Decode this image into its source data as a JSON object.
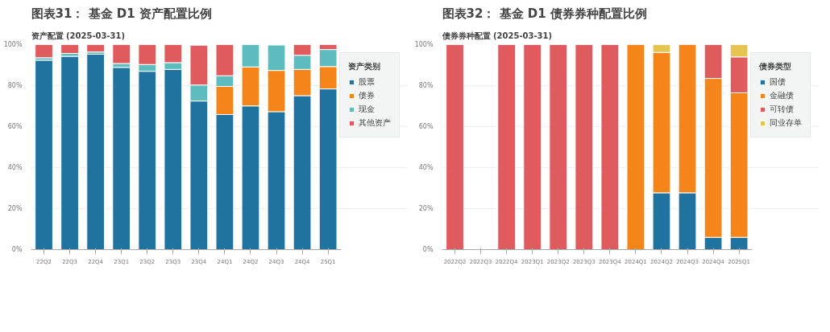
{
  "chart_data": [
    {
      "type": "bar",
      "title": "图表31： 基金 D1 资产配置比例",
      "subtitle": "资产配置 (2025-03-31)",
      "legend_title": "资产类别",
      "stacked": true,
      "legend": "right",
      "grid": "y",
      "categories": [
        "22Q2",
        "22Q3",
        "22Q4",
        "23Q1",
        "23Q2",
        "23Q3",
        "23Q4",
        "24Q1",
        "24Q2",
        "24Q3",
        "24Q4",
        "25Q1"
      ],
      "ylim": [
        0,
        100
      ],
      "yticks": [
        {
          "value": 0,
          "label": "0%"
        },
        {
          "value": 20,
          "label": "20%"
        },
        {
          "value": 40,
          "label": "40%"
        },
        {
          "value": 60,
          "label": "60%"
        },
        {
          "value": 80,
          "label": "80%"
        },
        {
          "value": 100,
          "label": "100%"
        }
      ],
      "series": [
        {
          "name": "股票",
          "color": "#21739f",
          "values": [
            92.4,
            94.3,
            95.3,
            88.9,
            87.0,
            87.9,
            72.5,
            65.9,
            70.1,
            67.3,
            75.1,
            78.4
          ]
        },
        {
          "name": "债券",
          "color": "#f58518",
          "values": [
            0,
            0,
            0,
            0,
            0,
            0,
            null,
            13.7,
            19.0,
            20.1,
            12.8,
            10.9
          ]
        },
        {
          "name": "现金",
          "color": "#5dbdbe",
          "values": [
            1.2,
            1.4,
            1.1,
            1.9,
            3.3,
            3.3,
            7.8,
            5.2,
            10.9,
            12.4,
            6.9,
            8.3
          ]
        },
        {
          "name": "其他资产",
          "color": "#e05b5d",
          "values": [
            6.4,
            4.3,
            3.6,
            9.2,
            9.7,
            8.8,
            19.4,
            15.2,
            0,
            null,
            5.2,
            2.4
          ]
        }
      ]
    },
    {
      "type": "bar",
      "title": "图表32： 基金 D1 债券券种配置比例",
      "subtitle": "债券券种配置 (2025-03-31)",
      "legend_title": "债券类型",
      "stacked": true,
      "legend": "right",
      "grid": "y",
      "categories": [
        "2022Q2",
        "2022Q3",
        "2022Q4",
        "2023Q1",
        "2023Q2",
        "2023Q3",
        "2023Q4",
        "2024Q1",
        "2024Q2",
        "2024Q3",
        "2024Q4",
        "2025Q1"
      ],
      "ylim": [
        0,
        100
      ],
      "yticks": [
        {
          "value": 0,
          "label": "0%"
        },
        {
          "value": 20,
          "label": "20%"
        },
        {
          "value": 40,
          "label": "40%"
        },
        {
          "value": 60,
          "label": "60%"
        },
        {
          "value": 80,
          "label": "80%"
        },
        {
          "value": 100,
          "label": "100%"
        }
      ],
      "series": [
        {
          "name": "国债",
          "color": "#21739f",
          "values": [
            0,
            null,
            0,
            0,
            0,
            0,
            0,
            0,
            27.7,
            27.7,
            6.0,
            6.0
          ]
        },
        {
          "name": "金融债",
          "color": "#f58518",
          "values": [
            0,
            null,
            0,
            0,
            0,
            0,
            0,
            100,
            68.5,
            72.3,
            77.5,
            70.5
          ]
        },
        {
          "name": "可转债",
          "color": "#e05b5d",
          "values": [
            100,
            null,
            100,
            100,
            100,
            100,
            100,
            0,
            0,
            0,
            16.5,
            17.5
          ]
        },
        {
          "name": "同业存单",
          "color": "#e6c452",
          "values": [
            0,
            null,
            0,
            0,
            0,
            0,
            0,
            0,
            3.8,
            0,
            0,
            6.0
          ]
        }
      ]
    }
  ]
}
